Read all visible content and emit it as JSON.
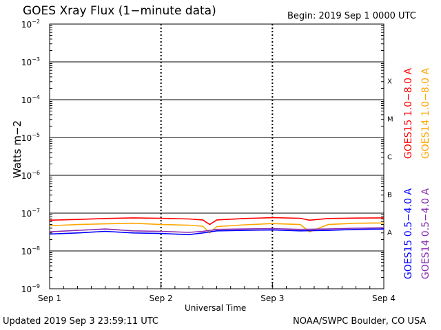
{
  "header": {
    "title": "GOES Xray Flux (1−minute data)",
    "begin": "Begin:  2019 Sep 1 0000 UTC"
  },
  "footer": {
    "updated": "Updated 2019 Sep  3 23:59:11 UTC",
    "credit": "NOAA/SWPC Boulder, CO USA"
  },
  "chart_data": {
    "type": "line",
    "title": "GOES Xray Flux (1−minute data)",
    "xlabel": "Universal Time",
    "ylabel": "Watts m−2",
    "yscale": "log",
    "ylim": [
      1e-09,
      0.01
    ],
    "xlim": [
      "2019-09-01",
      "2019-09-04"
    ],
    "x_tick_labels": [
      "Sep 1",
      "Sep 2",
      "Sep 3",
      "Sep 4"
    ],
    "y_tick_labels": [
      {
        "base": "10",
        "exp": "−2",
        "value": 0.01
      },
      {
        "base": "10",
        "exp": "−3",
        "value": 0.001
      },
      {
        "base": "10",
        "exp": "−4",
        "value": 0.0001
      },
      {
        "base": "10",
        "exp": "−5",
        "value": 1e-05
      },
      {
        "base": "10",
        "exp": "−6",
        "value": 1e-06
      },
      {
        "base": "10",
        "exp": "−7",
        "value": 1e-07
      },
      {
        "base": "10",
        "exp": "−8",
        "value": 1e-08
      },
      {
        "base": "10",
        "exp": "−9",
        "value": 1e-09
      }
    ],
    "flare_classes": [
      {
        "label": "X",
        "value": 0.0003
      },
      {
        "label": "M",
        "value": 3e-05
      },
      {
        "label": "C",
        "value": 3e-06
      },
      {
        "label": "B",
        "value": 3e-07
      },
      {
        "label": "A",
        "value": 3e-08
      }
    ],
    "grid": true,
    "legend_placement": "right",
    "legend": {
      "goes15_long": "GOES15 1.0−8.0 A",
      "goes14_long": "GOES14 1.0−8.0 A",
      "goes15_short": "GOES15 0.5−4.0 A",
      "goes14_short": "GOES14 0.5−4.0 A"
    },
    "series": [
      {
        "name": "GOES15 1.0−8.0 A",
        "color": "#ff0000",
        "x": [
          "2019-09-01 00:00",
          "2019-09-01 06:00",
          "2019-09-01 12:00",
          "2019-09-01 18:00",
          "2019-09-02 00:00",
          "2019-09-02 06:00",
          "2019-09-02 09:00",
          "2019-09-02 10:30",
          "2019-09-02 12:00",
          "2019-09-02 18:00",
          "2019-09-03 00:00",
          "2019-09-03 06:00",
          "2019-09-03 08:00",
          "2019-09-03 12:00",
          "2019-09-03 18:00",
          "2019-09-04 00:00"
        ],
        "values": [
          6.5e-08,
          6.8e-08,
          7.2e-08,
          7.5e-08,
          7.3e-08,
          7e-08,
          6.6e-08,
          5e-08,
          6.6e-08,
          7.2e-08,
          7.6e-08,
          7.3e-08,
          6.5e-08,
          7.2e-08,
          7.4e-08,
          7.5e-08
        ]
      },
      {
        "name": "GOES14 1.0−8.0 A",
        "color": "#ffa500",
        "x": [
          "2019-09-01 00:00",
          "2019-09-01 06:00",
          "2019-09-01 12:00",
          "2019-09-01 18:00",
          "2019-09-02 00:00",
          "2019-09-02 06:00",
          "2019-09-02 09:00",
          "2019-09-02 10:30",
          "2019-09-02 12:00",
          "2019-09-02 18:00",
          "2019-09-03 00:00",
          "2019-09-03 06:00",
          "2019-09-03 08:00",
          "2019-09-03 12:00",
          "2019-09-03 18:00",
          "2019-09-04 00:00"
        ],
        "values": [
          4.6e-08,
          5e-08,
          5.2e-08,
          5.4e-08,
          5e-08,
          4.8e-08,
          4.5e-08,
          3e-08,
          4.4e-08,
          4.9e-08,
          5.3e-08,
          5e-08,
          3.2e-08,
          5e-08,
          5.4e-08,
          5.5e-08
        ]
      },
      {
        "name": "GOES15 0.5−4.0 A",
        "color": "#0000ff",
        "x": [
          "2019-09-01 00:00",
          "2019-09-01 06:00",
          "2019-09-01 12:00",
          "2019-09-01 18:00",
          "2019-09-02 00:00",
          "2019-09-02 06:00",
          "2019-09-02 09:00",
          "2019-09-02 12:00",
          "2019-09-02 18:00",
          "2019-09-03 00:00",
          "2019-09-03 06:00",
          "2019-09-03 12:00",
          "2019-09-03 18:00",
          "2019-09-04 00:00"
        ],
        "values": [
          2.8e-08,
          3e-08,
          3.3e-08,
          3e-08,
          2.9e-08,
          2.7e-08,
          3e-08,
          3.4e-08,
          3.5e-08,
          3.6e-08,
          3.4e-08,
          3.5e-08,
          3.7e-08,
          3.8e-08
        ]
      },
      {
        "name": "GOES14 0.5−4.0 A",
        "color": "#8b2bb0",
        "x": [
          "2019-09-01 00:00",
          "2019-09-01 06:00",
          "2019-09-01 12:00",
          "2019-09-01 18:00",
          "2019-09-02 00:00",
          "2019-09-02 06:00",
          "2019-09-02 09:00",
          "2019-09-02 12:00",
          "2019-09-02 18:00",
          "2019-09-03 00:00",
          "2019-09-03 06:00",
          "2019-09-03 12:00",
          "2019-09-03 18:00",
          "2019-09-04 00:00"
        ],
        "values": [
          3.2e-08,
          3.5e-08,
          3.8e-08,
          3.4e-08,
          3.3e-08,
          3.1e-08,
          3.3e-08,
          3.7e-08,
          3.8e-08,
          3.9e-08,
          3.7e-08,
          3.8e-08,
          4e-08,
          4.1e-08
        ]
      }
    ]
  }
}
